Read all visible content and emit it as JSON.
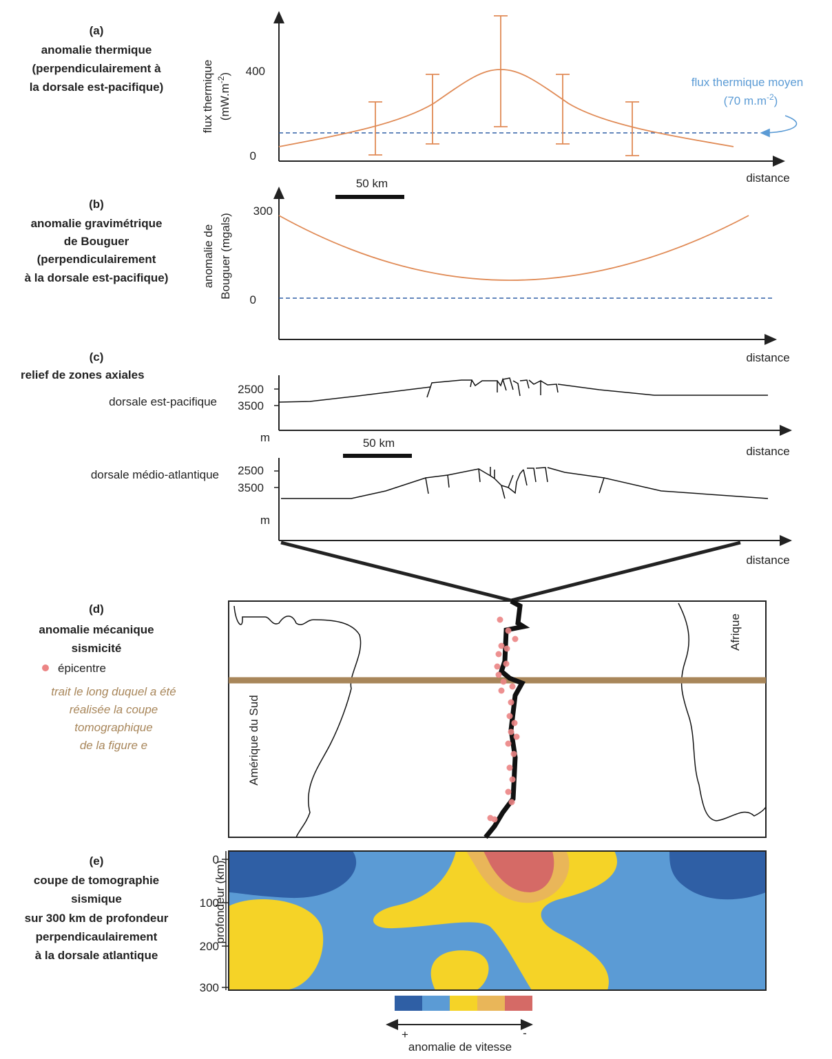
{
  "panel_a": {
    "letter": "(a)",
    "title_lines": [
      "anomalie thermique",
      "(perpendiculairement à",
      "la dorsale est-pacifique)"
    ],
    "ylabel_1": "flux thermique",
    "ylabel_2": {
      "text": "(mW.m",
      "sup": "-2",
      "after": ")"
    },
    "yticks": [
      400,
      0
    ],
    "mean_label": "flux thermique moyen",
    "mean_value": {
      "text": "(70 m.m",
      "sup": "-2",
      "after": ")"
    },
    "xlabel": "distance",
    "scale": "50 km"
  },
  "panel_b": {
    "letter": "(b)",
    "title_lines": [
      "anomalie gravimétrique",
      "de Bouguer",
      "(perpendiculairement",
      "à la dorsale est-pacifique)"
    ],
    "ylabel_1": "anomalie de",
    "ylabel_2": "Bouguer (mgals)",
    "yticks": [
      300,
      0
    ],
    "xlabel": "distance"
  },
  "panel_c": {
    "letter": "(c)",
    "title": "relief de zones axiales",
    "ridge_1": {
      "name": "dorsale est-pacifique",
      "yticks": [
        2500,
        3500
      ],
      "unit": "m",
      "xlabel": "distance",
      "scale": "50 km"
    },
    "ridge_2": {
      "name": "dorsale médio-atlantique",
      "yticks": [
        2500,
        3500
      ],
      "unit": "m",
      "xlabel": "distance"
    }
  },
  "panel_d": {
    "letter": "(d)",
    "title_lines": [
      "anomalie mécanique",
      "sismicité"
    ],
    "legend": "épicentre",
    "note_lines": [
      "trait le long duquel a été",
      "réalisée la coupe",
      "tomographique",
      "de la figure e"
    ],
    "left_continent": "Amérique du Sud",
    "right_continent": "Afrique"
  },
  "panel_e": {
    "letter": "(e)",
    "title_lines": [
      "coupe de tomographie",
      "sismique",
      "sur 300 km de profondeur",
      "perpendicaulairement",
      "à la dorsale atlantique"
    ],
    "ylabel": "profondeur (km)",
    "yticks": [
      0,
      100,
      200,
      300
    ],
    "legend_plus": "+",
    "legend_minus": "-",
    "legend_title": "anomalie de vitesse"
  }
}
